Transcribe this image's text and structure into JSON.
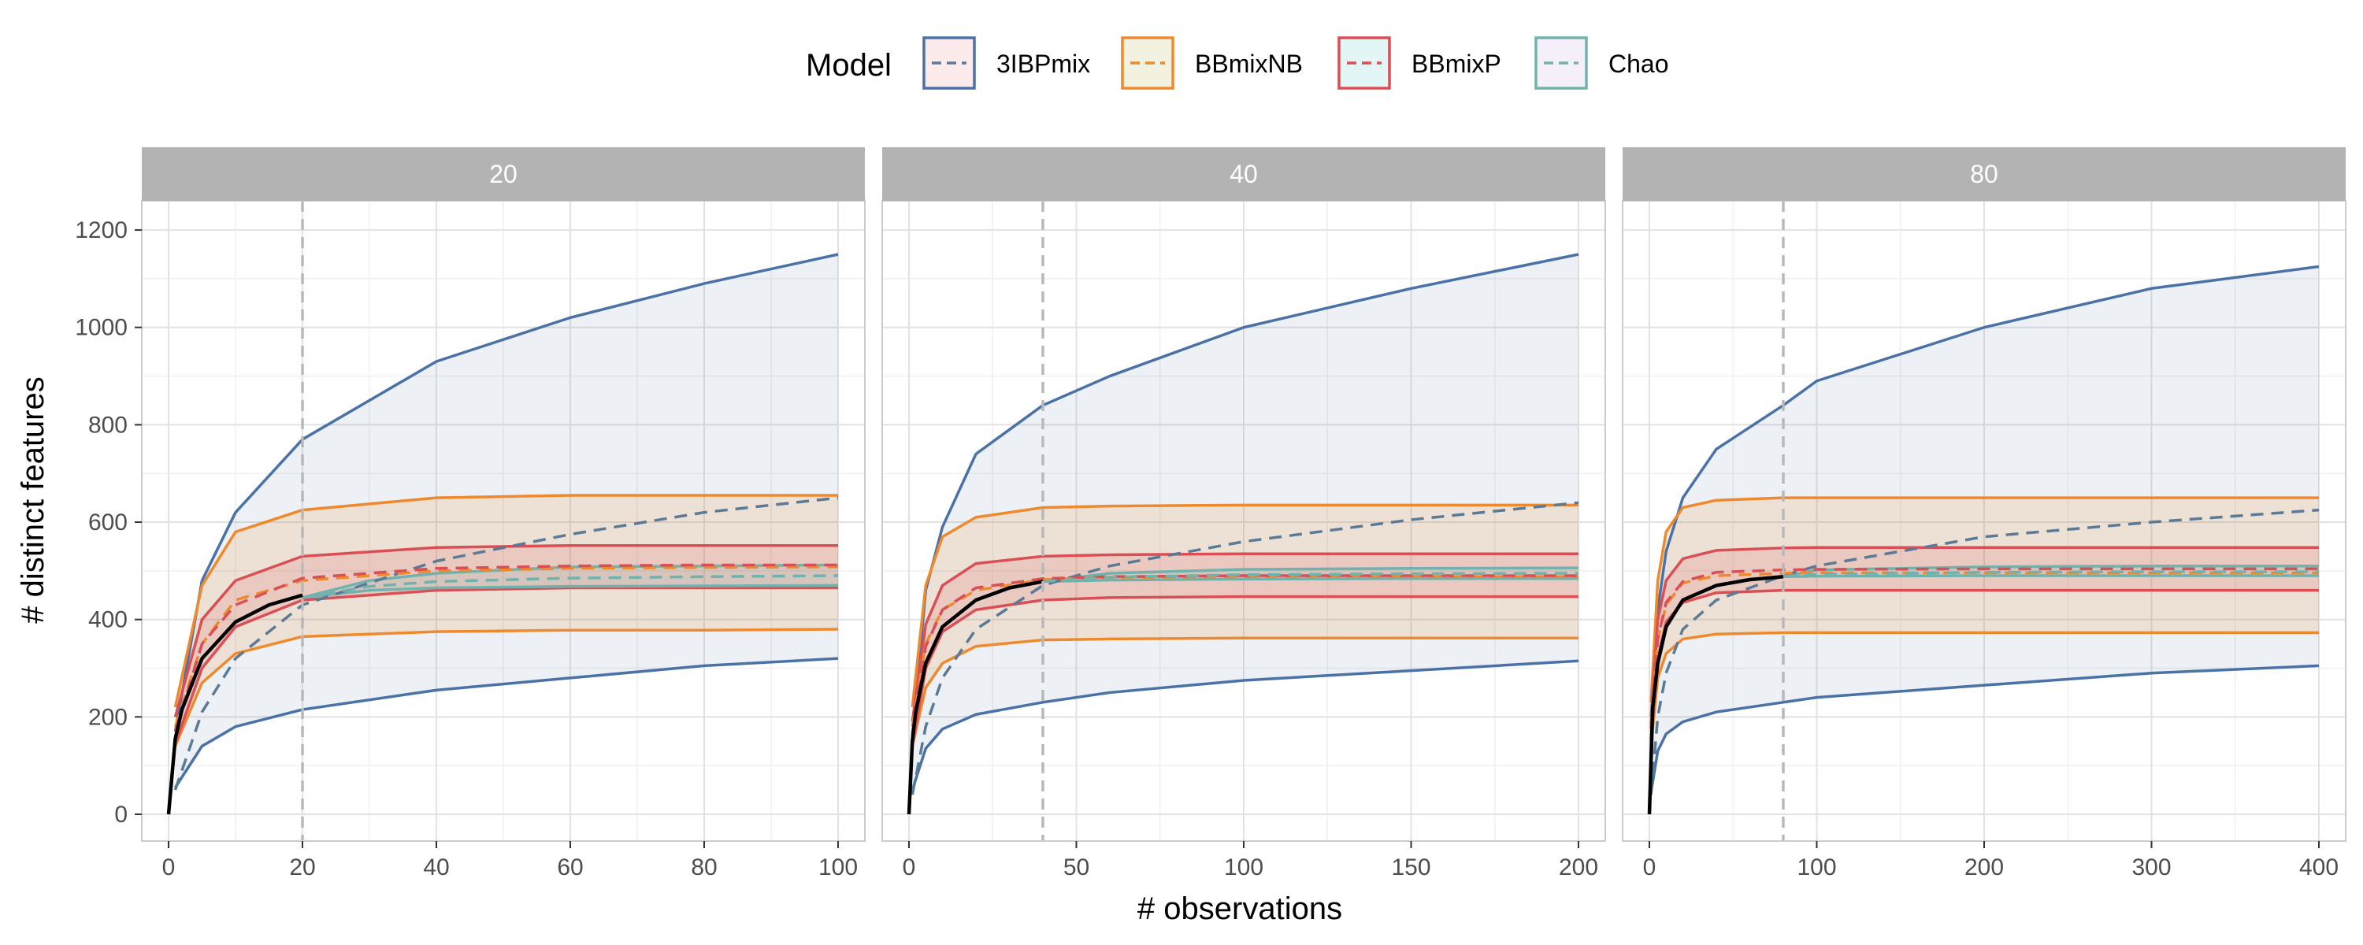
{
  "chart_data": {
    "type": "line",
    "xlabel": "# observations",
    "ylabel": "# distinct features",
    "legend_title": "Model",
    "legend_position": "top",
    "grid": true,
    "y_ticks": [
      0,
      200,
      400,
      600,
      800,
      1000,
      1200
    ],
    "ylim": [
      -55,
      1260
    ],
    "models": [
      {
        "name": "3IBPmix",
        "color": "#4a72a6",
        "fill": "#fdeaea"
      },
      {
        "name": "BBmixNB",
        "color": "#ee8a2d",
        "fill": "#f3f2e0"
      },
      {
        "name": "BBmixP",
        "color": "#d94f55",
        "fill": "#e3f6f6"
      },
      {
        "name": "Chao",
        "color": "#72b2ad",
        "fill": "#f5effa"
      }
    ],
    "facets": [
      {
        "label": "20",
        "n_train": 20,
        "x_max": 100,
        "xlim": [
          -4,
          104
        ],
        "x_ticks": [
          0,
          20,
          40,
          60,
          80,
          100
        ],
        "observed_curve": {
          "x": [
            0,
            1,
            2,
            5,
            10,
            15,
            20
          ],
          "y": [
            0,
            155,
            215,
            320,
            395,
            430,
            450
          ]
        },
        "bands": [
          {
            "model": "3IBPmix",
            "lower": {
              "x": [
                1,
                5,
                10,
                20,
                40,
                60,
                80,
                100
              ],
              "y": [
                55,
                140,
                180,
                215,
                255,
                280,
                305,
                320
              ]
            },
            "upper": {
              "x": [
                1,
                5,
                10,
                20,
                40,
                60,
                80,
                100
              ],
              "y": [
                170,
                480,
                620,
                770,
                930,
                1020,
                1090,
                1150
              ]
            },
            "mean": {
              "x": [
                1,
                5,
                10,
                20,
                40,
                60,
                80,
                100
              ],
              "y": [
                50,
                210,
                320,
                430,
                520,
                575,
                620,
                650
              ]
            }
          },
          {
            "model": "BBmixNB",
            "lower": {
              "x": [
                1,
                5,
                10,
                20,
                40,
                60,
                80,
                100
              ],
              "y": [
                140,
                270,
                330,
                365,
                375,
                378,
                378,
                380
              ]
            },
            "upper": {
              "x": [
                1,
                5,
                10,
                20,
                40,
                60,
                80,
                100
              ],
              "y": [
                220,
                470,
                580,
                625,
                650,
                655,
                655,
                655
              ]
            },
            "mean": {
              "x": [
                1,
                5,
                10,
                20,
                40,
                60,
                80,
                100
              ],
              "y": [
                180,
                350,
                440,
                480,
                500,
                505,
                507,
                508
              ]
            }
          },
          {
            "model": "BBmixP",
            "lower": {
              "x": [
                1,
                5,
                10,
                20,
                40,
                60,
                80,
                100
              ],
              "y": [
                145,
                300,
                385,
                440,
                460,
                465,
                465,
                465
              ]
            },
            "upper": {
              "x": [
                1,
                5,
                10,
                20,
                40,
                60,
                80,
                100
              ],
              "y": [
                200,
                400,
                480,
                530,
                548,
                552,
                552,
                552
              ]
            },
            "mean": {
              "x": [
                1,
                5,
                10,
                20,
                40,
                60,
                80,
                100
              ],
              "y": [
                170,
                350,
                430,
                485,
                505,
                510,
                512,
                512
              ]
            }
          },
          {
            "model": "Chao",
            "lower": {
              "x": [
                20,
                30,
                40,
                60,
                80,
                100
              ],
              "y": [
                445,
                460,
                465,
                468,
                469,
                470
              ]
            },
            "upper": {
              "x": [
                20,
                30,
                40,
                60,
                80,
                100
              ],
              "y": [
                445,
                480,
                495,
                508,
                510,
                512
              ]
            },
            "mean": {
              "x": [
                20,
                30,
                40,
                60,
                80,
                100
              ],
              "y": [
                445,
                468,
                478,
                485,
                488,
                490
              ]
            }
          }
        ]
      },
      {
        "label": "40",
        "n_train": 40,
        "x_max": 200,
        "xlim": [
          -8,
          208
        ],
        "x_ticks": [
          0,
          50,
          100,
          150,
          200
        ],
        "observed_curve": {
          "x": [
            0,
            1,
            2,
            5,
            10,
            20,
            30,
            40
          ],
          "y": [
            0,
            150,
            210,
            310,
            385,
            440,
            465,
            478
          ]
        },
        "bands": [
          {
            "model": "3IBPmix",
            "lower": {
              "x": [
                1,
                5,
                10,
                20,
                40,
                60,
                100,
                150,
                200
              ],
              "y": [
                50,
                135,
                175,
                205,
                230,
                250,
                275,
                295,
                315
              ]
            },
            "upper": {
              "x": [
                1,
                5,
                10,
                20,
                40,
                60,
                100,
                150,
                200
              ],
              "y": [
                160,
                460,
                590,
                740,
                840,
                900,
                1000,
                1080,
                1150
              ]
            },
            "mean": {
              "x": [
                1,
                5,
                10,
                20,
                40,
                60,
                100,
                150,
                200
              ],
              "y": [
                40,
                180,
                280,
                380,
                470,
                510,
                560,
                605,
                640
              ]
            }
          },
          {
            "model": "BBmixNB",
            "lower": {
              "x": [
                1,
                5,
                10,
                20,
                40,
                60,
                100,
                150,
                200
              ],
              "y": [
                140,
                260,
                310,
                345,
                358,
                360,
                362,
                362,
                362
              ]
            },
            "upper": {
              "x": [
                1,
                5,
                10,
                20,
                40,
                60,
                100,
                150,
                200
              ],
              "y": [
                220,
                470,
                570,
                610,
                630,
                633,
                635,
                635,
                635
              ]
            },
            "mean": {
              "x": [
                1,
                5,
                10,
                20,
                40,
                60,
                100,
                150,
                200
              ],
              "y": [
                180,
                350,
                420,
                460,
                482,
                486,
                488,
                488,
                488
              ]
            }
          },
          {
            "model": "BBmixP",
            "lower": {
              "x": [
                1,
                5,
                10,
                20,
                40,
                60,
                100,
                150,
                200
              ],
              "y": [
                140,
                300,
                375,
                420,
                440,
                445,
                447,
                447,
                447
              ]
            },
            "upper": {
              "x": [
                1,
                5,
                10,
                20,
                40,
                60,
                100,
                150,
                200
              ],
              "y": [
                190,
                390,
                470,
                515,
                530,
                533,
                535,
                535,
                535
              ]
            },
            "mean": {
              "x": [
                1,
                5,
                10,
                20,
                40,
                60,
                100,
                150,
                200
              ],
              "y": [
                165,
                345,
                420,
                465,
                484,
                488,
                490,
                490,
                490
              ]
            }
          },
          {
            "model": "Chao",
            "lower": {
              "x": [
                40,
                60,
                100,
                150,
                200
              ],
              "y": [
                478,
                481,
                483,
                484,
                484
              ]
            },
            "upper": {
              "x": [
                40,
                60,
                100,
                150,
                200
              ],
              "y": [
                478,
                495,
                503,
                505,
                506
              ]
            },
            "mean": {
              "x": [
                40,
                60,
                100,
                150,
                200
              ],
              "y": [
                478,
                487,
                492,
                494,
                495
              ]
            }
          }
        ]
      },
      {
        "label": "80",
        "n_train": 80,
        "x_max": 400,
        "xlim": [
          -16,
          416
        ],
        "x_ticks": [
          0,
          100,
          200,
          300,
          400
        ],
        "observed_curve": {
          "x": [
            0,
            2,
            5,
            10,
            20,
            40,
            60,
            80
          ],
          "y": [
            0,
            220,
            310,
            385,
            440,
            470,
            482,
            488
          ]
        },
        "bands": [
          {
            "model": "3IBPmix",
            "lower": {
              "x": [
                1,
                5,
                10,
                20,
                40,
                80,
                100,
                200,
                300,
                400
              ],
              "y": [
                45,
                130,
                165,
                190,
                210,
                230,
                240,
                265,
                290,
                305
              ]
            },
            "upper": {
              "x": [
                1,
                5,
                10,
                20,
                40,
                80,
                100,
                200,
                300,
                400
              ],
              "y": [
                150,
                420,
                540,
                650,
                750,
                840,
                890,
                1000,
                1080,
                1125
              ]
            },
            "mean": {
              "x": [
                1,
                5,
                10,
                20,
                40,
                80,
                100,
                200,
                300,
                400
              ],
              "y": [
                40,
                200,
                290,
                380,
                440,
                490,
                510,
                570,
                600,
                625
              ]
            }
          },
          {
            "model": "BBmixNB",
            "lower": {
              "x": [
                1,
                5,
                10,
                20,
                40,
                80,
                100,
                200,
                300,
                400
              ],
              "y": [
                140,
                280,
                330,
                360,
                370,
                373,
                373,
                373,
                373,
                373
              ]
            },
            "upper": {
              "x": [
                1,
                5,
                10,
                20,
                40,
                80,
                100,
                200,
                300,
                400
              ],
              "y": [
                230,
                480,
                580,
                630,
                645,
                650,
                650,
                650,
                650,
                650
              ]
            },
            "mean": {
              "x": [
                1,
                5,
                10,
                20,
                40,
                80,
                100,
                200,
                300,
                400
              ],
              "y": [
                185,
                360,
                430,
                475,
                490,
                495,
                496,
                496,
                496,
                496
              ]
            }
          },
          {
            "model": "BBmixP",
            "lower": {
              "x": [
                1,
                5,
                10,
                20,
                40,
                80,
                100,
                200,
                300,
                400
              ],
              "y": [
                150,
                320,
                395,
                435,
                455,
                460,
                460,
                460,
                460,
                460
              ]
            },
            "upper": {
              "x": [
                1,
                5,
                10,
                20,
                40,
                80,
                100,
                200,
                300,
                400
              ],
              "y": [
                200,
                400,
                480,
                525,
                542,
                547,
                548,
                548,
                548,
                548
              ]
            },
            "mean": {
              "x": [
                1,
                5,
                10,
                20,
                40,
                80,
                100,
                200,
                300,
                400
              ],
              "y": [
                175,
                360,
                435,
                478,
                497,
                502,
                503,
                504,
                504,
                504
              ]
            }
          },
          {
            "model": "Chao",
            "lower": {
              "x": [
                80,
                100,
                200,
                300,
                400
              ],
              "y": [
                488,
                489,
                490,
                490,
                490
              ]
            },
            "upper": {
              "x": [
                80,
                100,
                200,
                300,
                400
              ],
              "y": [
                488,
                502,
                508,
                510,
                510
              ]
            },
            "mean": {
              "x": [
                80,
                100,
                200,
                300,
                400
              ],
              "y": [
                488,
                493,
                497,
                498,
                498
              ]
            }
          }
        ]
      }
    ]
  }
}
